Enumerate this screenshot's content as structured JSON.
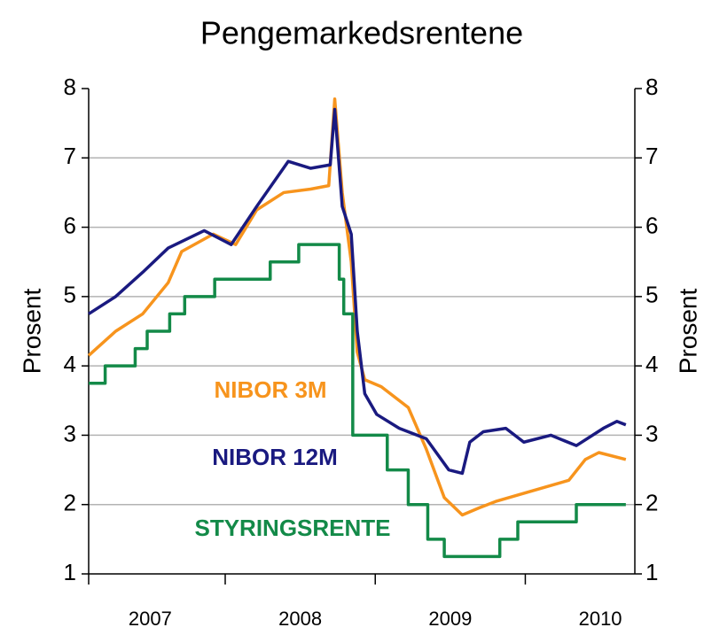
{
  "chart_data": {
    "type": "line",
    "title": "Pengemarkedsrentene",
    "ylabel": "Prosent",
    "y2label": "Prosent",
    "xlim": [
      2007.09,
      2010.73
    ],
    "xticks": [
      {
        "value": 2007.5,
        "label": "2007"
      },
      {
        "value": 2008.5,
        "label": "2008"
      },
      {
        "value": 2009.5,
        "label": "2009"
      },
      {
        "value": 2010.5,
        "label": "2010"
      }
    ],
    "ylim": [
      1,
      8
    ],
    "yticks": [
      1,
      2,
      3,
      4,
      5,
      6,
      7,
      8
    ],
    "y2lim": [
      1,
      8
    ],
    "y2ticks": [
      1,
      2,
      3,
      4,
      5,
      6,
      7,
      8
    ],
    "grid": true,
    "series": [
      {
        "name": "NIBOR 3M",
        "color": "#f7941d",
        "x": [
          2007.09,
          2007.27,
          2007.45,
          2007.62,
          2007.71,
          2007.92,
          2008.07,
          2008.21,
          2008.39,
          2008.57,
          2008.69,
          2008.73,
          2008.78,
          2008.84,
          2008.88,
          2008.93,
          2009.04,
          2009.22,
          2009.34,
          2009.46,
          2009.58,
          2009.69,
          2009.81,
          2010.05,
          2010.29,
          2010.4,
          2010.49,
          2010.67
        ],
        "values": [
          4.15,
          4.5,
          4.75,
          5.2,
          5.65,
          5.9,
          5.75,
          6.25,
          6.5,
          6.55,
          6.6,
          7.85,
          6.5,
          5.5,
          4.2,
          3.8,
          3.7,
          3.4,
          2.8,
          2.1,
          1.85,
          1.95,
          2.05,
          2.2,
          2.35,
          2.65,
          2.75,
          2.65
        ]
      },
      {
        "name": "NIBOR 12M",
        "color": "#1a1a80",
        "x": [
          2007.09,
          2007.27,
          2007.45,
          2007.62,
          2007.86,
          2008.04,
          2008.21,
          2008.42,
          2008.57,
          2008.7,
          2008.73,
          2008.78,
          2008.84,
          2008.88,
          2008.93,
          2009.01,
          2009.16,
          2009.34,
          2009.49,
          2009.58,
          2009.63,
          2009.72,
          2009.87,
          2009.99,
          2010.17,
          2010.34,
          2010.52,
          2010.61,
          2010.67
        ],
        "values": [
          4.75,
          5.0,
          5.35,
          5.7,
          5.95,
          5.75,
          6.3,
          6.95,
          6.85,
          6.9,
          7.7,
          6.3,
          5.9,
          4.5,
          3.6,
          3.3,
          3.1,
          2.95,
          2.5,
          2.45,
          2.9,
          3.05,
          3.1,
          2.9,
          3.0,
          2.85,
          3.1,
          3.2,
          3.15
        ]
      },
      {
        "name": "STYRINGSRENTE",
        "color": "#138a48",
        "step": true,
        "x": [
          2007.09,
          2007.2,
          2007.4,
          2007.48,
          2007.63,
          2007.73,
          2007.93,
          2008.3,
          2008.49,
          2008.76,
          2008.79,
          2008.85,
          2009.08,
          2009.22,
          2009.35,
          2009.46,
          2009.83,
          2009.95,
          2010.34,
          2010.67
        ],
        "values": [
          3.75,
          4.0,
          4.25,
          4.5,
          4.75,
          5.0,
          5.25,
          5.5,
          5.75,
          5.25,
          4.75,
          3.0,
          2.5,
          2.0,
          1.5,
          1.25,
          1.5,
          1.75,
          2.0,
          2.0
        ]
      }
    ]
  }
}
